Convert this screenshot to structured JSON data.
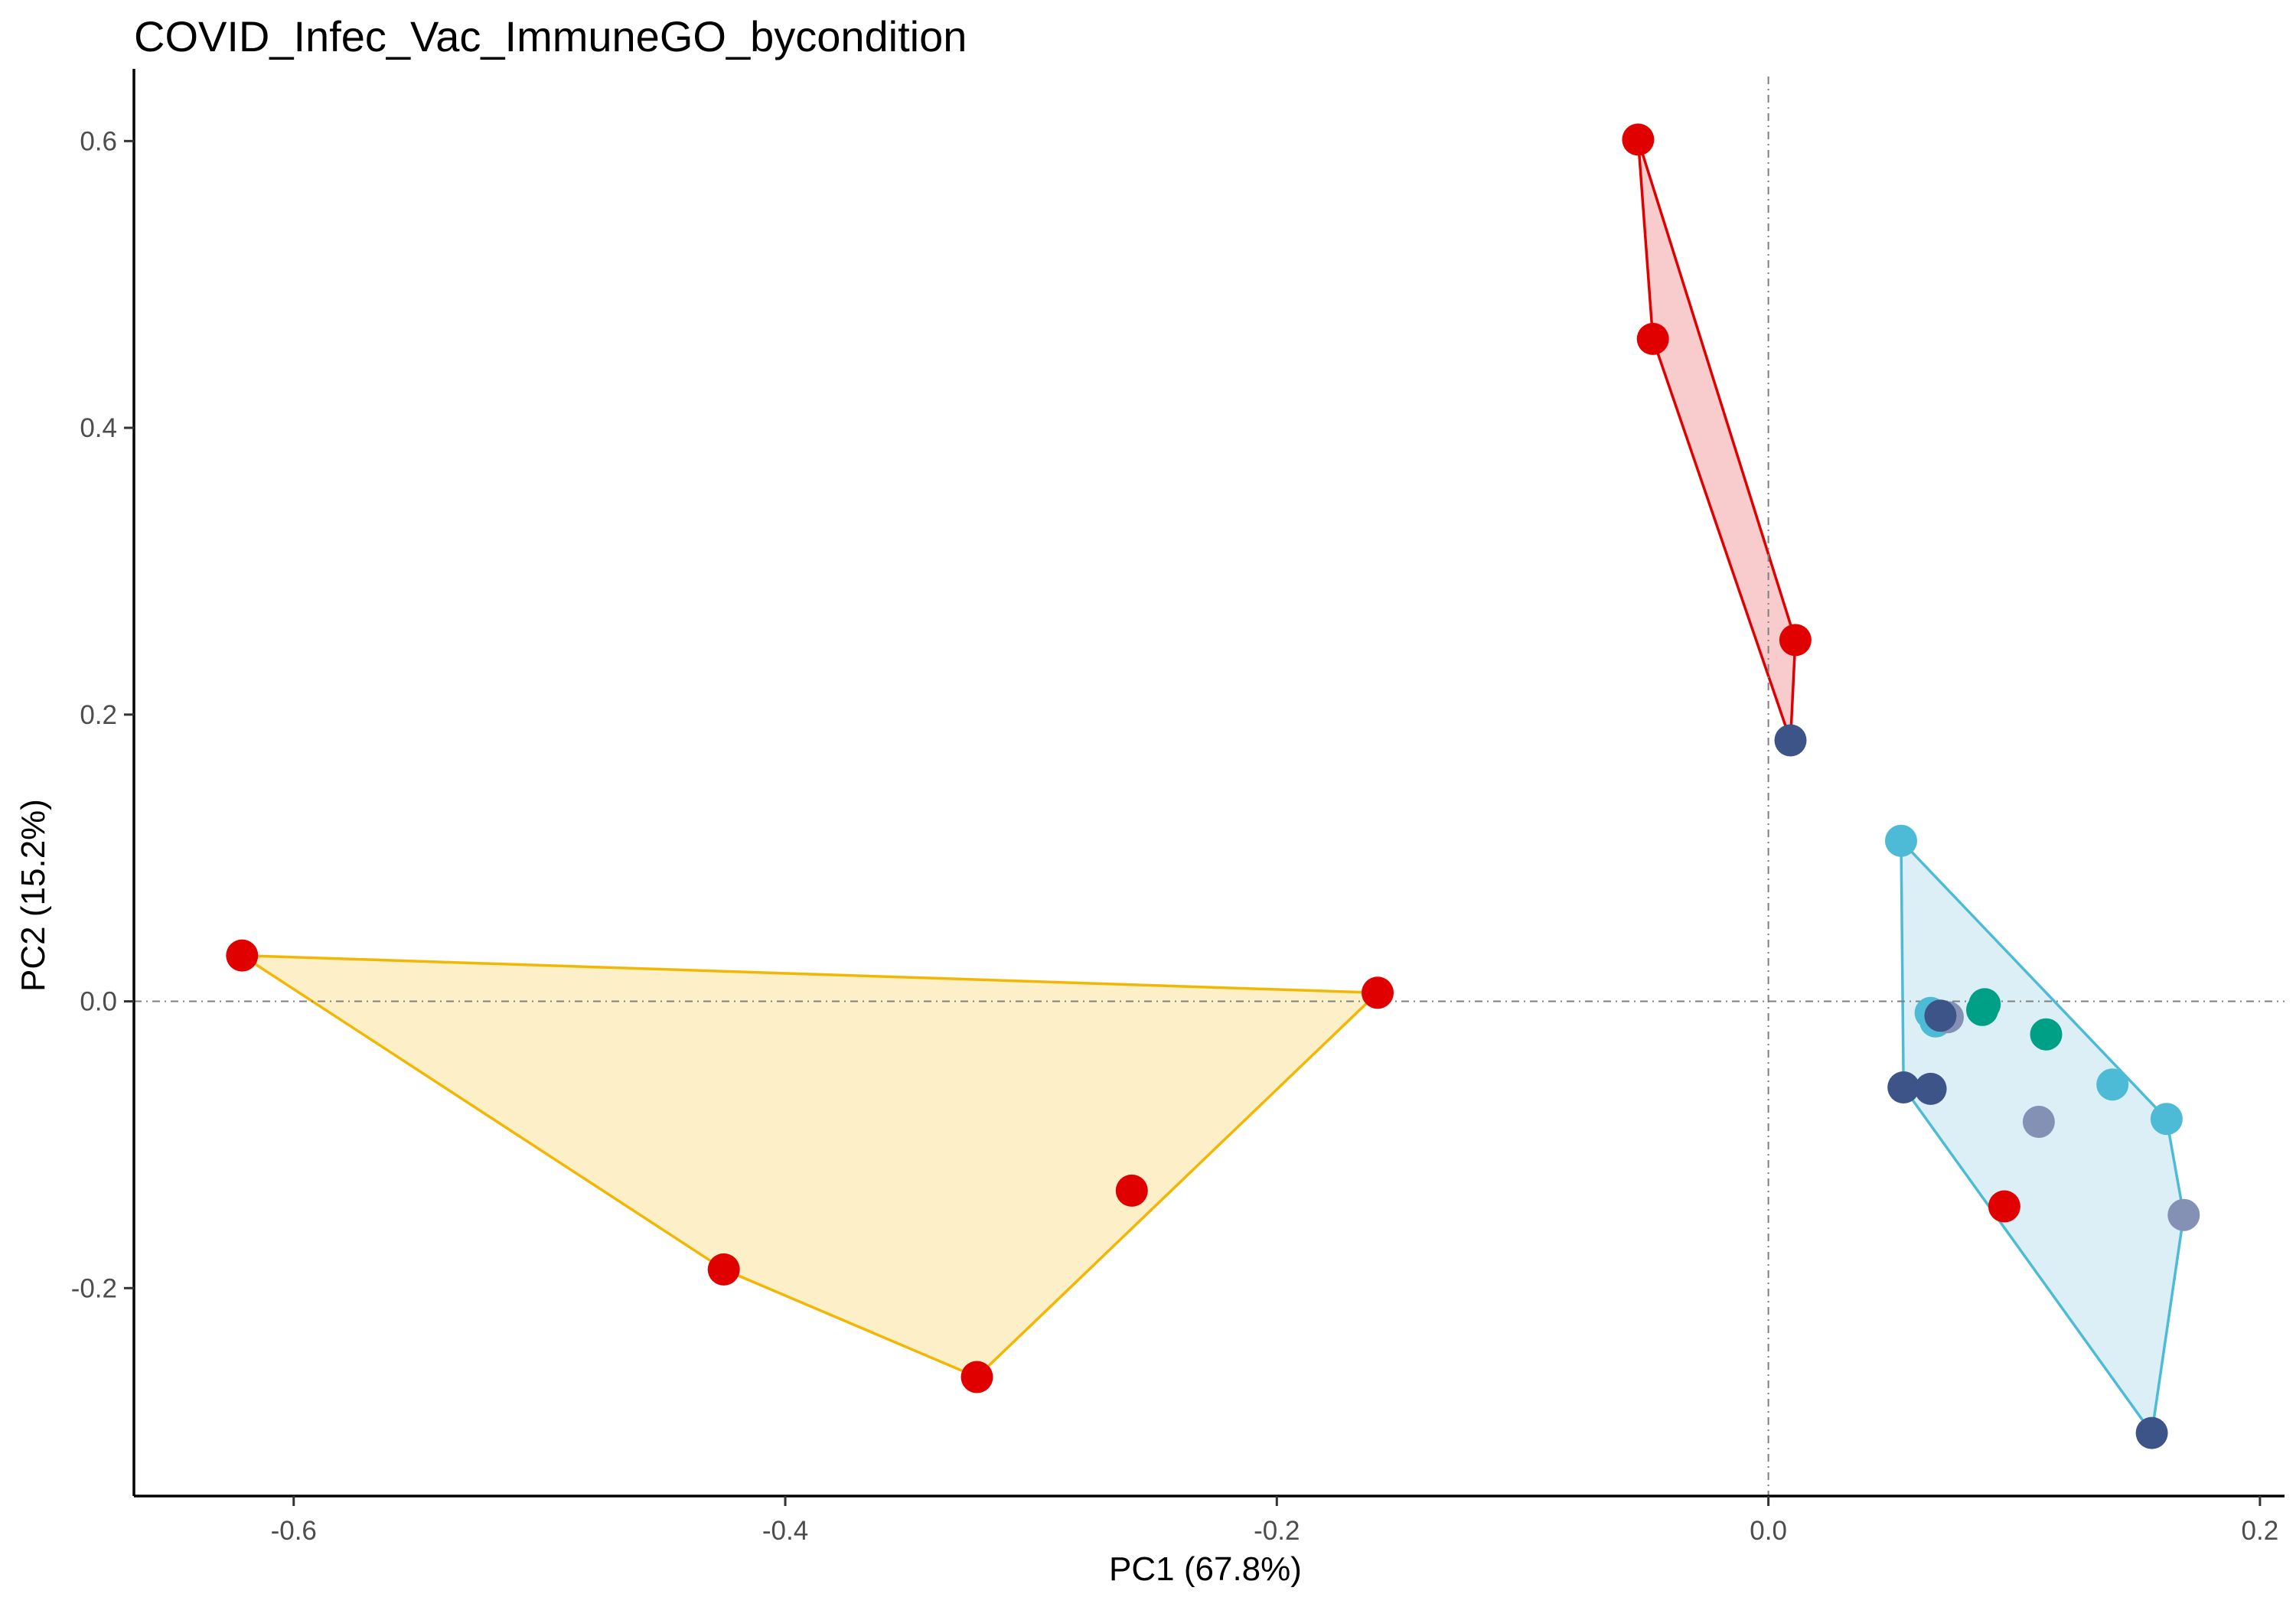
{
  "chart_data": {
    "type": "scatter",
    "title": "COVID_Infec_Vac_ImmuneGO_bycondition",
    "xlabel": "PC1 (67.8%)",
    "ylabel": "PC2 (15.2%)",
    "xlim": [
      -0.665,
      0.21
    ],
    "ylim": [
      -0.345,
      0.645
    ],
    "grid": false,
    "legend": "none",
    "reference_lines": {
      "x": 0.0,
      "y": 0.0
    },
    "x_ticks": [
      {
        "value": -0.6,
        "label": "-0.6"
      },
      {
        "value": -0.4,
        "label": "-0.4"
      },
      {
        "value": -0.2,
        "label": "-0.2"
      },
      {
        "value": 0.0,
        "label": "0.0"
      },
      {
        "value": 0.2,
        "label": "0.2"
      }
    ],
    "y_ticks": [
      {
        "value": -0.2,
        "label": "-0.2"
      },
      {
        "value": 0.0,
        "label": "0.0"
      },
      {
        "value": 0.2,
        "label": "0.2"
      },
      {
        "value": 0.4,
        "label": "0.4"
      },
      {
        "value": 0.6,
        "label": "0.6"
      }
    ],
    "hulls": [
      {
        "stroke": "#F2B705",
        "fill": "#FDF0C8",
        "points": [
          [
            -0.621,
            0.032
          ],
          [
            -0.159,
            0.006
          ],
          [
            -0.322,
            -0.262
          ],
          [
            -0.425,
            -0.187
          ]
        ]
      },
      {
        "stroke": "#E00000",
        "fill": "#F8CBCD",
        "points": [
          [
            -0.053,
            0.601
          ],
          [
            0.011,
            0.252
          ],
          [
            0.009,
            0.182
          ],
          [
            -0.047,
            0.462
          ]
        ]
      },
      {
        "stroke": "#4DBBD5",
        "fill": "#DCEFF7",
        "points": [
          [
            0.054,
            0.112
          ],
          [
            0.162,
            -0.082
          ],
          [
            0.169,
            -0.149
          ],
          [
            0.156,
            -0.301
          ],
          [
            0.055,
            -0.06
          ]
        ]
      }
    ],
    "points": [
      {
        "x": -0.053,
        "y": 0.601,
        "color": "#E00000"
      },
      {
        "x": -0.047,
        "y": 0.462,
        "color": "#E00000"
      },
      {
        "x": 0.011,
        "y": 0.252,
        "color": "#E00000"
      },
      {
        "x": 0.009,
        "y": 0.182,
        "color": "#3C5488"
      },
      {
        "x": -0.621,
        "y": 0.032,
        "color": "#E00000"
      },
      {
        "x": -0.159,
        "y": 0.006,
        "color": "#E00000"
      },
      {
        "x": -0.259,
        "y": -0.132,
        "color": "#E00000"
      },
      {
        "x": -0.425,
        "y": -0.187,
        "color": "#E00000"
      },
      {
        "x": -0.322,
        "y": -0.262,
        "color": "#E00000"
      },
      {
        "x": 0.054,
        "y": 0.112,
        "color": "#4DBBD5"
      },
      {
        "x": 0.066,
        "y": -0.008,
        "color": "#4DBBD5"
      },
      {
        "x": 0.068,
        "y": -0.014,
        "color": "#4DBBD5"
      },
      {
        "x": 0.073,
        "y": -0.011,
        "color": "#8491B4"
      },
      {
        "x": 0.07,
        "y": -0.01,
        "color": "#3C5488"
      },
      {
        "x": 0.088,
        "y": -0.002,
        "color": "#00A087"
      },
      {
        "x": 0.087,
        "y": -0.006,
        "color": "#00A087"
      },
      {
        "x": 0.113,
        "y": -0.023,
        "color": "#00A087"
      },
      {
        "x": 0.14,
        "y": -0.058,
        "color": "#4DBBD5"
      },
      {
        "x": 0.162,
        "y": -0.082,
        "color": "#4DBBD5"
      },
      {
        "x": 0.055,
        "y": -0.06,
        "color": "#3C5488"
      },
      {
        "x": 0.066,
        "y": -0.061,
        "color": "#3C5488"
      },
      {
        "x": 0.11,
        "y": -0.084,
        "color": "#8491B4"
      },
      {
        "x": 0.169,
        "y": -0.149,
        "color": "#8491B4"
      },
      {
        "x": 0.096,
        "y": -0.143,
        "color": "#E00000"
      },
      {
        "x": 0.156,
        "y": -0.301,
        "color": "#3C5488"
      }
    ]
  }
}
